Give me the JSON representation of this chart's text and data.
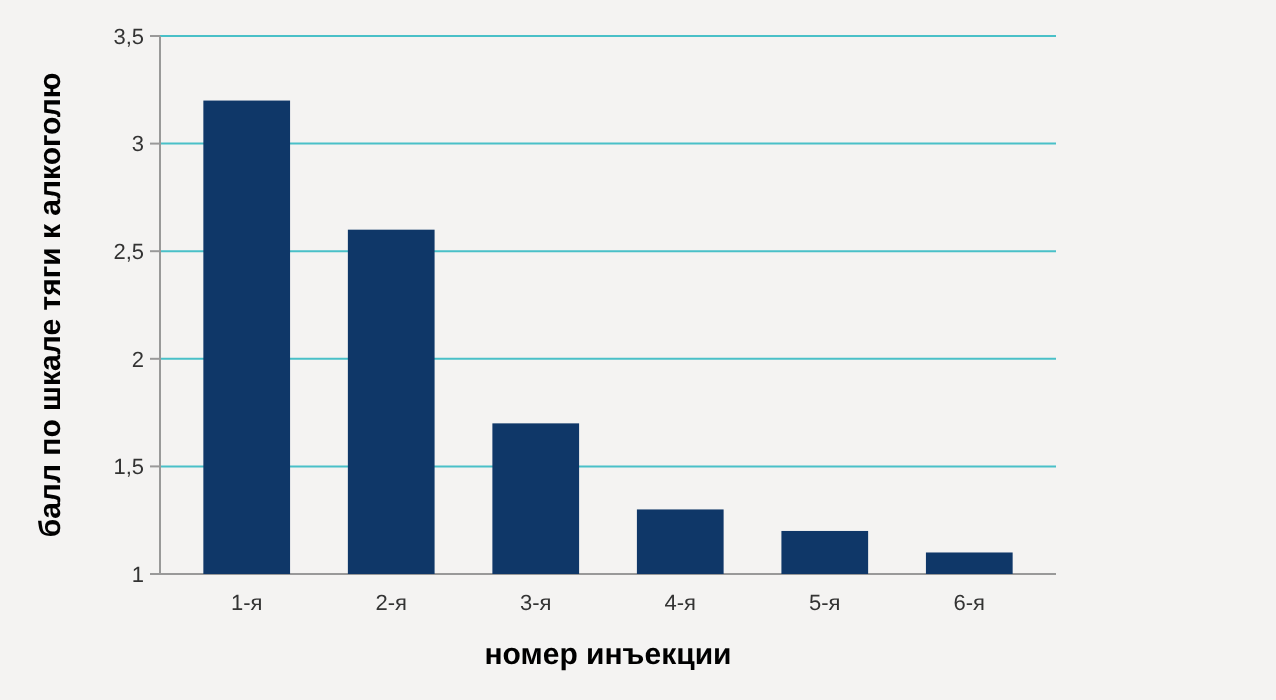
{
  "chart_data": {
    "type": "bar",
    "xlabel": "номер инъекции",
    "ylabel": "балл по шкале тяги к алкоголю",
    "categories": [
      "1-я",
      "2-я",
      "3-я",
      "4-я",
      "5-я",
      "6-я"
    ],
    "values": [
      3.2,
      2.6,
      1.7,
      1.3,
      1.2,
      1.1
    ],
    "color": "#0f3768",
    "ylim": [
      1,
      3.5
    ],
    "yticks": [
      1,
      {
        "value": 1.5,
        "label": "1,5"
      },
      2,
      {
        "value": 2.5,
        "label": "2,5"
      },
      3,
      {
        "value": 3.5,
        "label": "3,5"
      }
    ],
    "grid": "y"
  }
}
